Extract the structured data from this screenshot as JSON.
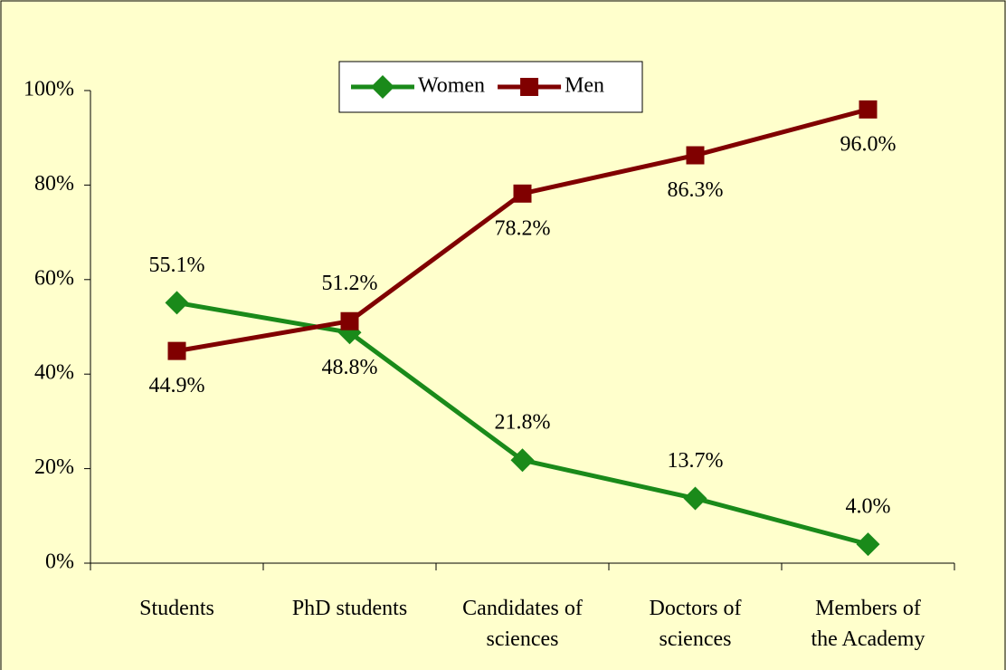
{
  "chart_data": {
    "type": "line",
    "categories": [
      "Students",
      "PhD students",
      "Candidates of\nsciences",
      "Doctors of\nsciences",
      "Members of\nthe Academy"
    ],
    "series": [
      {
        "name": "Women",
        "color": "#1a8a1a",
        "marker": "diamond",
        "values": [
          55.1,
          48.8,
          21.8,
          13.7,
          4.0
        ],
        "value_labels": [
          "55.1%",
          "48.8%",
          "21.8%",
          "13.7%",
          "4.0%"
        ]
      },
      {
        "name": "Men",
        "color": "#800000",
        "marker": "square",
        "values": [
          44.9,
          51.2,
          78.2,
          86.3,
          96.0
        ],
        "value_labels": [
          "44.9%",
          "51.2%",
          "78.2%",
          "86.3%",
          "96.0%"
        ]
      }
    ],
    "ylim": [
      0,
      100
    ],
    "yticks": [
      {
        "value": 0,
        "label": "0%"
      },
      {
        "value": 20,
        "label": "20%"
      },
      {
        "value": 40,
        "label": "40%"
      },
      {
        "value": 60,
        "label": "60%"
      },
      {
        "value": 80,
        "label": "80%"
      },
      {
        "value": 100,
        "label": "100%"
      }
    ],
    "legend": "top"
  }
}
